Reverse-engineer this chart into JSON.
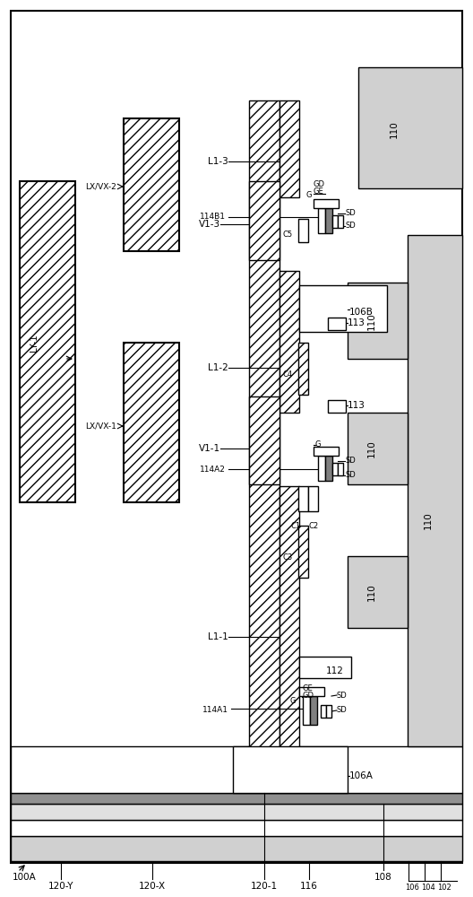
{
  "fig_width": 5.28,
  "fig_height": 10.0,
  "dpi": 100,
  "bg_color": "#ffffff",
  "dot_fill": "#d0d0d0",
  "gray_fill": "#b0b0b0",
  "label_100A": "100A",
  "label_102": "102",
  "label_104": "104",
  "label_106": "106",
  "label_106A": "106A",
  "label_106B": "106B",
  "label_108": "108",
  "label_110": "110",
  "label_112": "112",
  "label_113": "113",
  "label_116": "116",
  "label_120_1": "120-1",
  "label_120_X": "120-X",
  "label_120_Y": "120-Y",
  "label_L1_1": "L1-1",
  "label_L1_2": "L1-2",
  "label_L1_3": "L1-3",
  "label_V1_1": "V1-1",
  "label_V1_3": "V1-3",
  "label_LY1": "LY-1",
  "label_LXVX1": "LX/VX-1",
  "label_LXVX2": "LX/VX-2",
  "label_114A1": "114A1",
  "label_114A2": "114A2",
  "label_114B1": "114B1",
  "label_C1": "C1",
  "label_C2": "C2",
  "label_C3": "C3",
  "label_C4": "C4",
  "label_C5": "C5",
  "label_G": "G",
  "label_GE": "GE",
  "label_GD": "GD",
  "label_SD": "SD"
}
